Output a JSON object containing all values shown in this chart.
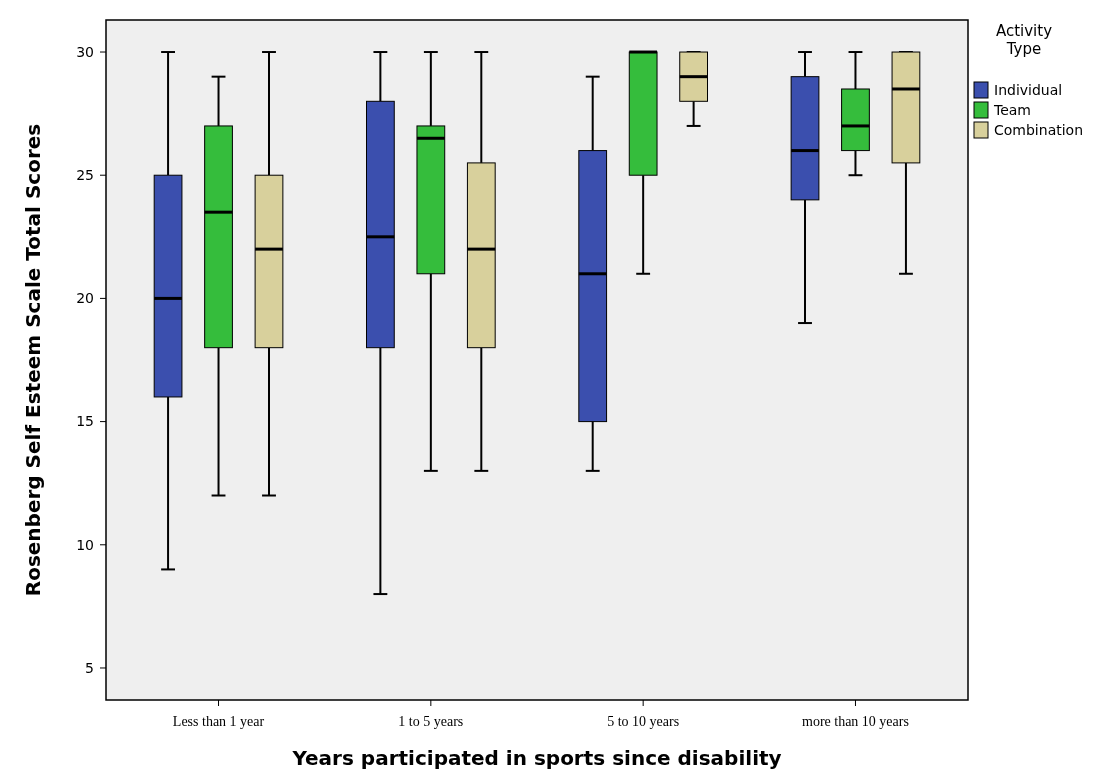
{
  "chart_data": {
    "type": "box",
    "xlabel": "Years participated in sports since disability",
    "ylabel": "Rosenberg Self Esteem Scale Total Scores",
    "legend_title": "Activity Type",
    "legend": "top right",
    "categories": [
      "Less than 1 year",
      "1 to 5 years",
      "5 to 10 years",
      "more than 10 years"
    ],
    "ylim": [
      3.7,
      31.3
    ],
    "yticks": [
      5,
      10,
      15,
      20,
      25,
      30
    ],
    "series": [
      {
        "name": "Individual",
        "color": "#3b4fae",
        "boxes": [
          {
            "low": 9,
            "q1": 16,
            "median": 20,
            "q3": 25,
            "high": 30
          },
          {
            "low": 8,
            "q1": 18,
            "median": 22.5,
            "q3": 28,
            "high": 30
          },
          {
            "low": 13,
            "q1": 15,
            "median": 21,
            "q3": 26,
            "high": 29
          },
          {
            "low": 19,
            "q1": 24,
            "median": 26,
            "q3": 29,
            "high": 30
          }
        ]
      },
      {
        "name": "Team",
        "color": "#35bd3c",
        "boxes": [
          {
            "low": 12,
            "q1": 18,
            "median": 23.5,
            "q3": 27,
            "high": 29
          },
          {
            "low": 13,
            "q1": 21,
            "median": 26.5,
            "q3": 27,
            "high": 30
          },
          {
            "low": 21,
            "q1": 25,
            "median": 30,
            "q3": 30,
            "high": 30
          },
          {
            "low": 25,
            "q1": 26,
            "median": 27,
            "q3": 28.5,
            "high": 30
          }
        ]
      },
      {
        "name": "Combination",
        "color": "#d8d09c",
        "boxes": [
          {
            "low": 12,
            "q1": 18,
            "median": 22,
            "q3": 25,
            "high": 30
          },
          {
            "low": 13,
            "q1": 18,
            "median": 22,
            "q3": 25.5,
            "high": 30
          },
          {
            "low": 27,
            "q1": 28,
            "median": 29,
            "q3": 30,
            "high": 30
          },
          {
            "low": 21,
            "q1": 25.5,
            "median": 28.5,
            "q3": 30,
            "high": 30
          }
        ]
      }
    ]
  }
}
